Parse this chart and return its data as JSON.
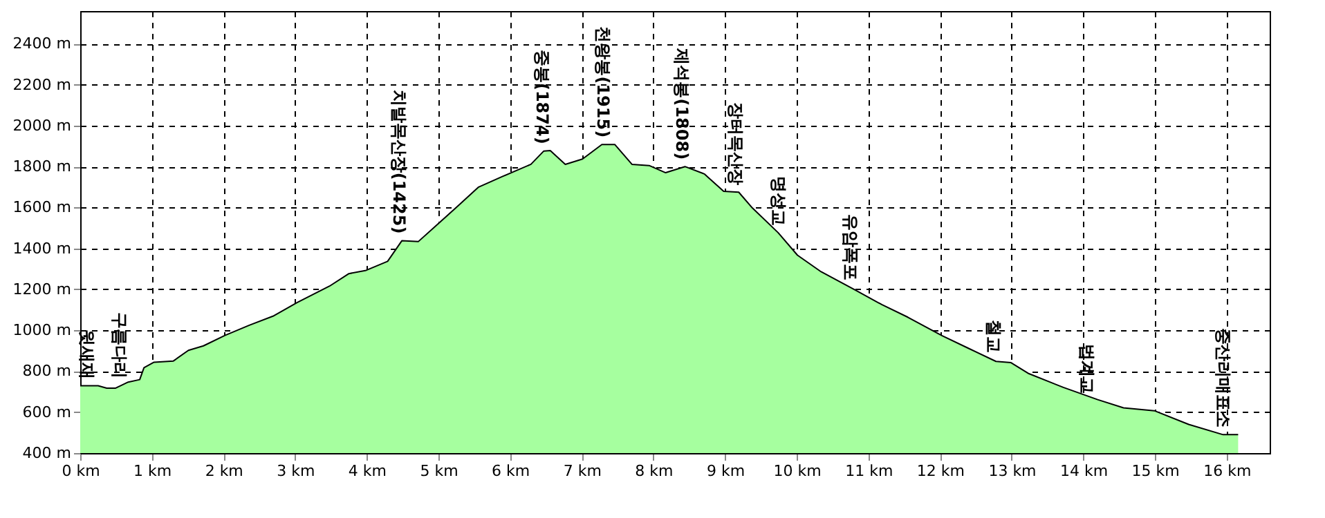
{
  "chart_data": {
    "type": "area",
    "grid": true,
    "xlim": [
      0,
      16.6
    ],
    "ylim": [
      400,
      2560
    ],
    "xticks": [
      {
        "value": 0,
        "label": "0 km"
      },
      {
        "value": 1,
        "label": "1 km"
      },
      {
        "value": 2,
        "label": "2 km"
      },
      {
        "value": 3,
        "label": "3 km"
      },
      {
        "value": 4,
        "label": "4 km"
      },
      {
        "value": 5,
        "label": "5 km"
      },
      {
        "value": 6,
        "label": "6 km"
      },
      {
        "value": 7,
        "label": "7 km"
      },
      {
        "value": 8,
        "label": "8 km"
      },
      {
        "value": 9,
        "label": "9 km"
      },
      {
        "value": 10,
        "label": "10 km"
      },
      {
        "value": 11,
        "label": "11 km"
      },
      {
        "value": 12,
        "label": "12 km"
      },
      {
        "value": 13,
        "label": "13 km"
      },
      {
        "value": 14,
        "label": "14 km"
      },
      {
        "value": 15,
        "label": "15 km"
      },
      {
        "value": 16,
        "label": "16 km"
      }
    ],
    "yticks": [
      {
        "value": 400,
        "label": "400 m"
      },
      {
        "value": 600,
        "label": "600 m"
      },
      {
        "value": 800,
        "label": "800 m"
      },
      {
        "value": 1000,
        "label": "1000 m"
      },
      {
        "value": 1200,
        "label": "1200 m"
      },
      {
        "value": 1400,
        "label": "1400 m"
      },
      {
        "value": 1600,
        "label": "1600 m"
      },
      {
        "value": 1800,
        "label": "1800 m"
      },
      {
        "value": 2000,
        "label": "2000 m"
      },
      {
        "value": 2200,
        "label": "2200 m"
      },
      {
        "value": 2400,
        "label": "2400 m"
      }
    ],
    "x": [
      0,
      0.25,
      0.37,
      0.49,
      0.67,
      0.83,
      0.89,
      1.03,
      1.3,
      1.51,
      1.72,
      2.02,
      2.36,
      2.69,
      3.03,
      3.48,
      3.75,
      3.99,
      4.29,
      4.49,
      4.72,
      4.99,
      5.26,
      5.56,
      5.89,
      6.29,
      6.47,
      6.56,
      6.77,
      7.01,
      7.28,
      7.46,
      7.7,
      7.94,
      8.17,
      8.44,
      8.71,
      8.98,
      9.19,
      9.38,
      9.74,
      10.01,
      10.34,
      10.82,
      11.19,
      11.55,
      12.03,
      12.39,
      12.78,
      12.99,
      13.24,
      13.72,
      14.2,
      14.56,
      14.99,
      15.47,
      15.95,
      16.16
    ],
    "series": [
      {
        "color": "#a6ff9f",
        "values": [
          729,
          729,
          717,
          717,
          747,
          759,
          817,
          844,
          850,
          902,
          924,
          975,
          1025,
          1069,
          1136,
          1216,
          1277,
          1293,
          1337,
          1438,
          1434,
          1519,
          1604,
          1700,
          1751,
          1811,
          1876,
          1878,
          1811,
          1837,
          1908,
          1908,
          1811,
          1805,
          1770,
          1800,
          1764,
          1679,
          1675,
          1598,
          1477,
          1367,
          1286,
          1196,
          1125,
          1064,
          973,
          913,
          848,
          842,
          788,
          721,
          661,
          621,
          607,
          540,
          490,
          490
        ]
      }
    ],
    "annotations": [
      {
        "text": "윗새재",
        "x": 0.1,
        "y": 729
      },
      {
        "text": "구름다리",
        "x": 0.55,
        "y": 730
      },
      {
        "text": "치발목산장(1425)",
        "x": 4.45,
        "y": 1438
      },
      {
        "text": "중봉(1874)",
        "x": 6.45,
        "y": 1876
      },
      {
        "text": "천왕봉(1915)",
        "x": 7.3,
        "y": 1908
      },
      {
        "text": "제석봉(1808)",
        "x": 8.4,
        "y": 1800
      },
      {
        "text": "장터목산장",
        "x": 9.15,
        "y": 1675
      },
      {
        "text": "명성교",
        "x": 9.75,
        "y": 1477
      },
      {
        "text": "유암폭포",
        "x": 10.75,
        "y": 1210
      },
      {
        "text": "철교",
        "x": 12.75,
        "y": 855
      },
      {
        "text": "법계교",
        "x": 14.05,
        "y": 655
      },
      {
        "text": "중산리매표소",
        "x": 15.95,
        "y": 490
      }
    ]
  }
}
